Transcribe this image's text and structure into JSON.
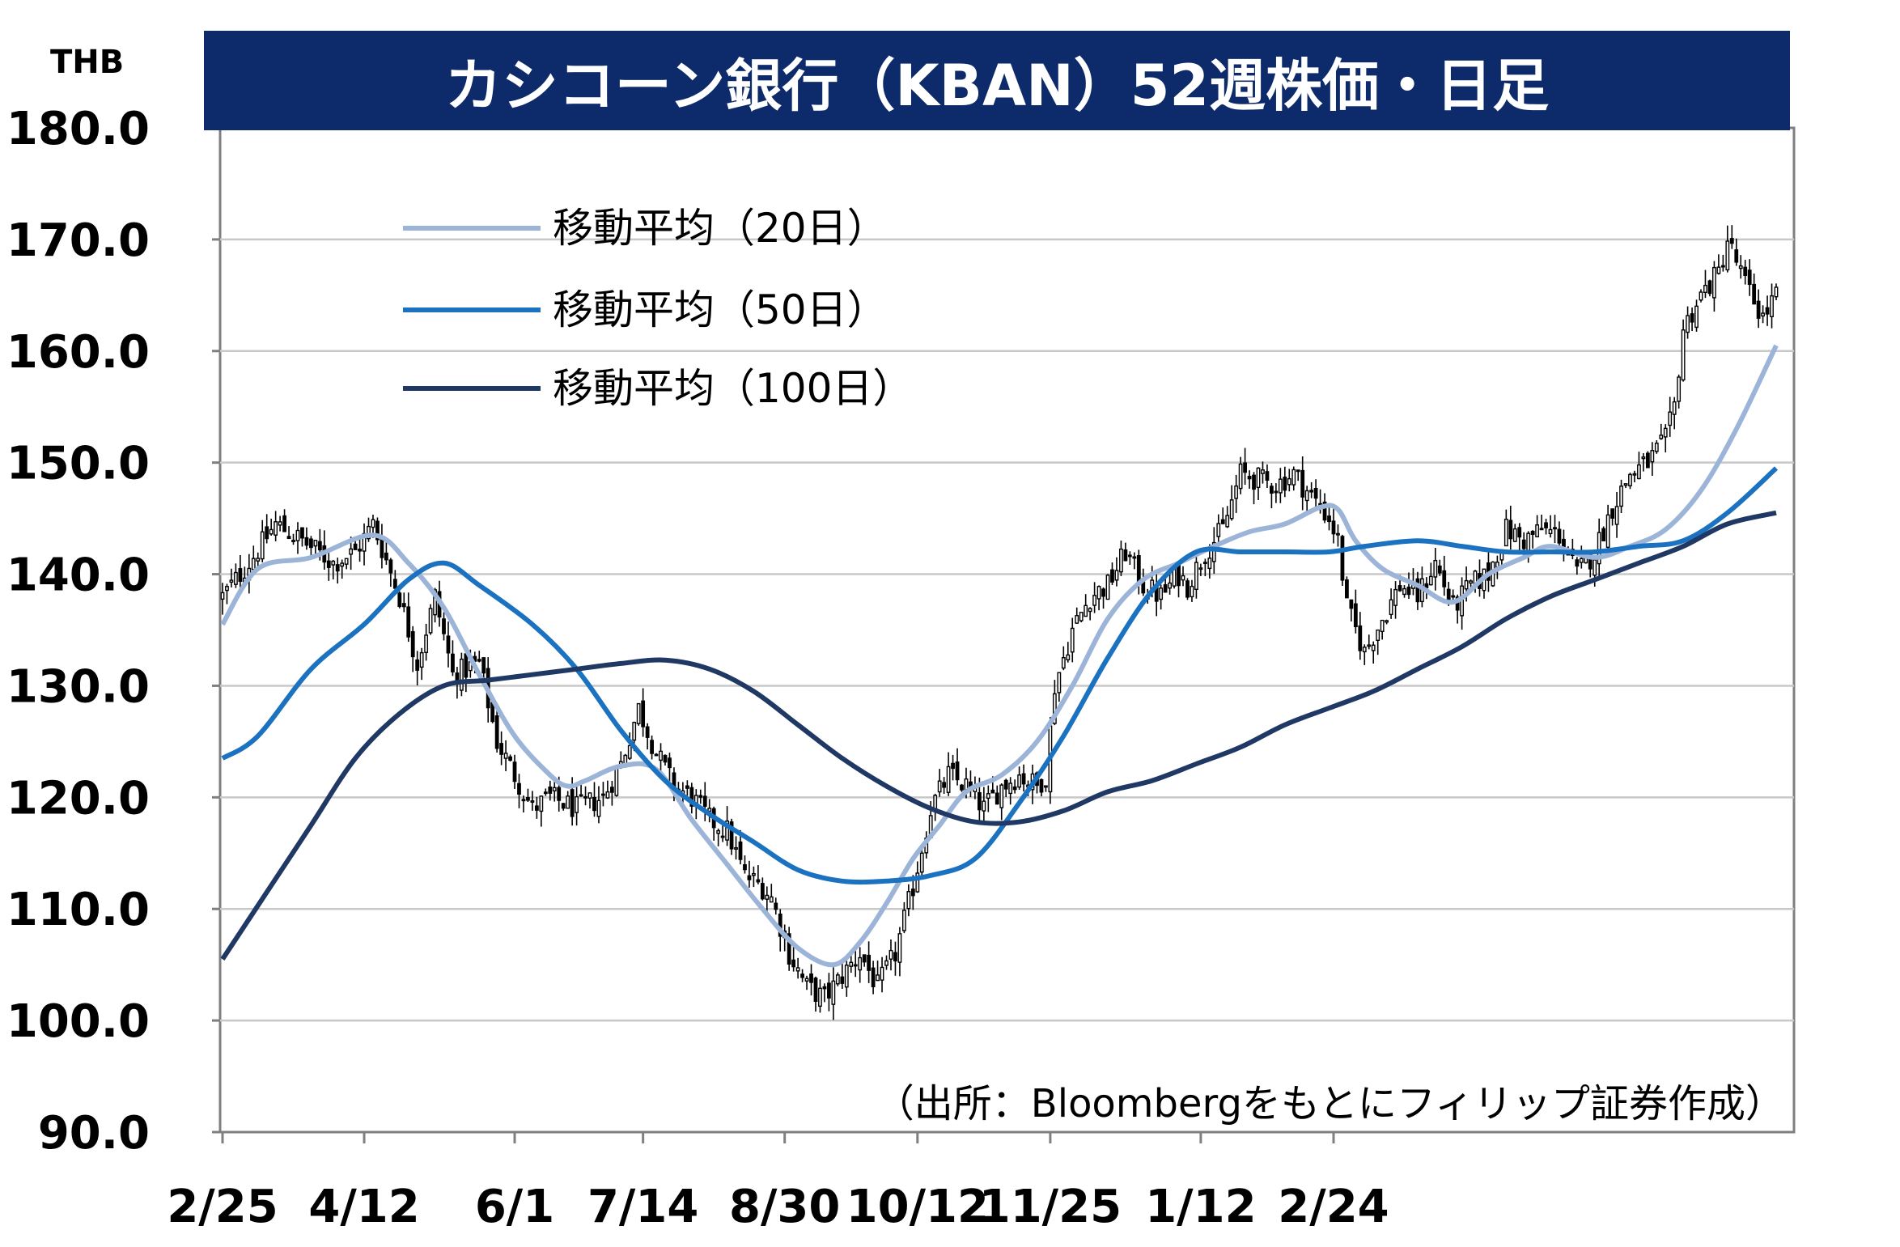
{
  "chart_data": {
    "type": "candlestick",
    "title": "カシコーン銀行（KBAN）52週株価・日足",
    "unit_label": "THB",
    "source": "（出所：Bloombergをもとにフィリップ証券作成）",
    "ylim": [
      90,
      180
    ],
    "yticks": [
      "90.0",
      "100.0",
      "110.0",
      "120.0",
      "130.0",
      "140.0",
      "150.0",
      "160.0",
      "170.0",
      "180.0"
    ],
    "xticks": [
      "2/25",
      "4/12",
      "6/1",
      "7/14",
      "8/30",
      "10/12",
      "11/25",
      "1/12",
      "2/24"
    ],
    "grid": true,
    "legend_position": "top-left",
    "colors": {
      "ma20": "#9bb4d8",
      "ma50": "#1b72c0",
      "ma100": "#1f3864",
      "title_bg": "#0d2a6a",
      "candle": "#000000",
      "grid": "#c8c8c8"
    },
    "candle_keypoints": [
      [
        0,
        138
      ],
      [
        6,
        141
      ],
      [
        12,
        144.5
      ],
      [
        18,
        143
      ],
      [
        25,
        141
      ],
      [
        30,
        142
      ],
      [
        34,
        144.5
      ],
      [
        40,
        138
      ],
      [
        44,
        132
      ],
      [
        48,
        138
      ],
      [
        52,
        131
      ],
      [
        58,
        132
      ],
      [
        62,
        125
      ],
      [
        66,
        122
      ],
      [
        70,
        119
      ],
      [
        74,
        120
      ],
      [
        80,
        119
      ],
      [
        86,
        120
      ],
      [
        90,
        123
      ],
      [
        94,
        128
      ],
      [
        98,
        124
      ],
      [
        102,
        121
      ],
      [
        106,
        120
      ],
      [
        110,
        118
      ],
      [
        114,
        117
      ],
      [
        118,
        113
      ],
      [
        122,
        112
      ],
      [
        124,
        111
      ],
      [
        128,
        106
      ],
      [
        132,
        103
      ],
      [
        136,
        102
      ],
      [
        140,
        104
      ],
      [
        144,
        106
      ],
      [
        148,
        103
      ],
      [
        152,
        106
      ],
      [
        156,
        112
      ],
      [
        160,
        119
      ],
      [
        164,
        122
      ],
      [
        168,
        121
      ],
      [
        172,
        119
      ],
      [
        176,
        121
      ],
      [
        180,
        122
      ],
      [
        184,
        121
      ],
      [
        186,
        122
      ],
      [
        188,
        130
      ],
      [
        192,
        135
      ],
      [
        196,
        138
      ],
      [
        200,
        139
      ],
      [
        204,
        142
      ],
      [
        208,
        139
      ],
      [
        212,
        138
      ],
      [
        216,
        140
      ],
      [
        218,
        139
      ],
      [
        222,
        142
      ],
      [
        226,
        144
      ],
      [
        230,
        149
      ],
      [
        234,
        148.5
      ],
      [
        238,
        148
      ],
      [
        242,
        149
      ],
      [
        246,
        147
      ],
      [
        250,
        145
      ],
      [
        252,
        143
      ],
      [
        254,
        137
      ],
      [
        258,
        133
      ],
      [
        262,
        136
      ],
      [
        266,
        139
      ],
      [
        270,
        138
      ],
      [
        274,
        141
      ],
      [
        278,
        137
      ],
      [
        282,
        139
      ],
      [
        286,
        140
      ],
      [
        290,
        144
      ],
      [
        294,
        143
      ],
      [
        298,
        144
      ],
      [
        302,
        143.5
      ],
      [
        306,
        140
      ],
      [
        310,
        142
      ],
      [
        314,
        146
      ],
      [
        318,
        149
      ],
      [
        322,
        150
      ],
      [
        326,
        152
      ],
      [
        328,
        155
      ],
      [
        330,
        162
      ],
      [
        334,
        165
      ],
      [
        338,
        167
      ],
      [
        340,
        170
      ],
      [
        344,
        166
      ],
      [
        348,
        163
      ],
      [
        351,
        165
      ]
    ],
    "series": [
      {
        "name": "移動平均（20日）",
        "type": "line",
        "x": [
          0,
          8,
          20,
          34,
          42,
          50,
          58,
          66,
          74,
          78,
          82,
          90,
          98,
          106,
          114,
          122,
          130,
          138,
          144,
          150,
          156,
          162,
          168,
          176,
          184,
          192,
          200,
          208,
          216,
          224,
          232,
          240,
          248,
          252,
          256,
          262,
          270,
          278,
          286,
          294,
          300,
          310,
          318,
          326,
          334,
          342,
          351
        ],
        "values": [
          135.5,
          140.5,
          141.5,
          143.5,
          141,
          137,
          131,
          125.5,
          122,
          121,
          121.5,
          122.8,
          122.5,
          118,
          114,
          110,
          106.5,
          105,
          107,
          110.5,
          114.5,
          117.5,
          120.5,
          122,
          125,
          130,
          136,
          139.5,
          141,
          142.5,
          143.8,
          144.5,
          146,
          145.8,
          143,
          140.5,
          139,
          137.5,
          140,
          141.5,
          142.5,
          141.5,
          142.5,
          144,
          147.5,
          153,
          160.5
        ]
      },
      {
        "name": "移動平均（50日）",
        "type": "line",
        "x": [
          0,
          8,
          20,
          32,
          42,
          50,
          58,
          70,
          80,
          90,
          100,
          110,
          120,
          130,
          140,
          150,
          160,
          170,
          180,
          190,
          200,
          210,
          220,
          230,
          240,
          250,
          258,
          270,
          280,
          290,
          300,
          310,
          320,
          330,
          340,
          351
        ],
        "values": [
          123.5,
          125.5,
          131.5,
          135.5,
          139.5,
          141,
          139,
          135.5,
          131.5,
          126,
          121.5,
          118.5,
          116,
          113.5,
          112.5,
          112.5,
          113,
          114.5,
          119.5,
          125.5,
          132.5,
          138.5,
          142,
          142,
          142,
          142,
          142.5,
          143,
          142.5,
          142,
          142,
          142,
          142.5,
          143,
          145.5,
          149.5
        ]
      },
      {
        "name": "移動平均（100日）",
        "type": "line",
        "x": [
          0,
          10,
          20,
          30,
          40,
          50,
          60,
          70,
          80,
          90,
          100,
          110,
          120,
          130,
          140,
          150,
          160,
          170,
          180,
          190,
          200,
          210,
          220,
          230,
          240,
          250,
          260,
          270,
          280,
          290,
          300,
          310,
          320,
          330,
          340,
          351
        ],
        "values": [
          105.5,
          111.5,
          117.5,
          123.5,
          127.5,
          130,
          130.5,
          131,
          131.5,
          132,
          132.3,
          131.5,
          129.5,
          126.5,
          123.5,
          121,
          119,
          117.8,
          117.8,
          118.8,
          120.5,
          121.5,
          123,
          124.5,
          126.5,
          128,
          129.5,
          131.5,
          133.5,
          136,
          138,
          139.5,
          141,
          142.5,
          144.5,
          145.5
        ]
      }
    ]
  }
}
